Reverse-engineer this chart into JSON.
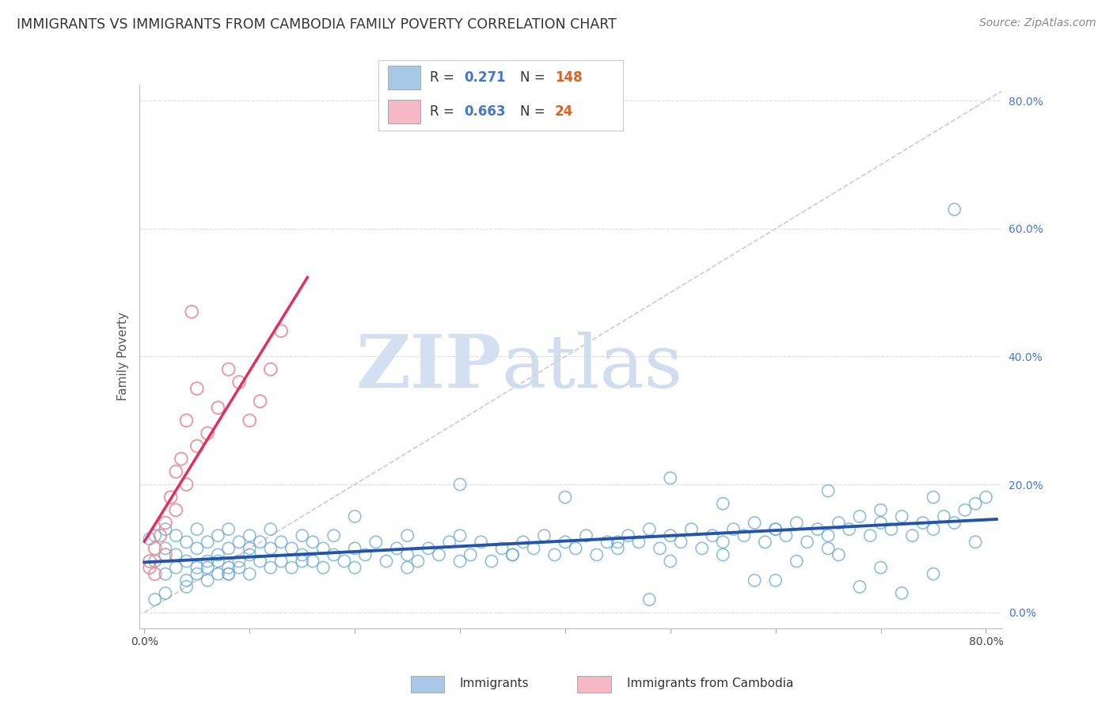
{
  "title": "IMMIGRANTS VS IMMIGRANTS FROM CAMBODIA FAMILY POVERTY CORRELATION CHART",
  "source": "Source: ZipAtlas.com",
  "ylabel": "Family Poverty",
  "legend_label1": "Immigrants",
  "legend_label2": "Immigrants from Cambodia",
  "R1": 0.271,
  "N1": 148,
  "R2": 0.663,
  "N2": 24,
  "xlim": [
    -0.005,
    0.815
  ],
  "ylim": [
    -0.025,
    0.825
  ],
  "yticks": [
    0.0,
    0.2,
    0.4,
    0.6,
    0.8
  ],
  "xtick_labels_show": [
    0.0,
    0.8
  ],
  "color_blue": "#A8C8E8",
  "color_blue_edge": "#6AAAD4",
  "color_blue_line": "#2255AA",
  "color_pink": "#F5B8C4",
  "color_pink_edge": "#E88898",
  "color_pink_line": "#E03060",
  "color_diag": "#E0B0B8",
  "color_grid": "#DDDDDD",
  "watermark_zip": "ZIP",
  "watermark_atlas": "atlas",
  "blue_x": [
    0.005,
    0.01,
    0.01,
    0.02,
    0.02,
    0.02,
    0.03,
    0.03,
    0.03,
    0.04,
    0.04,
    0.04,
    0.05,
    0.05,
    0.05,
    0.05,
    0.06,
    0.06,
    0.06,
    0.07,
    0.07,
    0.07,
    0.07,
    0.08,
    0.08,
    0.08,
    0.08,
    0.09,
    0.09,
    0.09,
    0.1,
    0.1,
    0.1,
    0.1,
    0.11,
    0.11,
    0.12,
    0.12,
    0.12,
    0.13,
    0.13,
    0.14,
    0.14,
    0.15,
    0.15,
    0.16,
    0.16,
    0.17,
    0.17,
    0.18,
    0.18,
    0.19,
    0.2,
    0.2,
    0.21,
    0.22,
    0.23,
    0.24,
    0.25,
    0.25,
    0.26,
    0.27,
    0.28,
    0.29,
    0.3,
    0.3,
    0.31,
    0.32,
    0.33,
    0.34,
    0.35,
    0.36,
    0.37,
    0.38,
    0.39,
    0.4,
    0.41,
    0.42,
    0.43,
    0.44,
    0.45,
    0.46,
    0.47,
    0.48,
    0.49,
    0.5,
    0.51,
    0.52,
    0.53,
    0.54,
    0.55,
    0.56,
    0.57,
    0.58,
    0.59,
    0.6,
    0.61,
    0.62,
    0.63,
    0.64,
    0.65,
    0.66,
    0.67,
    0.68,
    0.69,
    0.7,
    0.71,
    0.72,
    0.73,
    0.74,
    0.75,
    0.76,
    0.77,
    0.78,
    0.79,
    0.8,
    0.3,
    0.4,
    0.5,
    0.2,
    0.55,
    0.65,
    0.7,
    0.75,
    0.6,
    0.45,
    0.35,
    0.25,
    0.15,
    0.08,
    0.06,
    0.04,
    0.02,
    0.01,
    0.5,
    0.55,
    0.6,
    0.65,
    0.7,
    0.75,
    0.68,
    0.72,
    0.58,
    0.48,
    0.77,
    0.79,
    0.62,
    0.66
  ],
  "blue_y": [
    0.115,
    0.08,
    0.12,
    0.06,
    0.1,
    0.13,
    0.07,
    0.09,
    0.12,
    0.05,
    0.08,
    0.11,
    0.07,
    0.1,
    0.13,
    0.06,
    0.08,
    0.11,
    0.07,
    0.06,
    0.09,
    0.12,
    0.08,
    0.07,
    0.1,
    0.13,
    0.06,
    0.08,
    0.11,
    0.07,
    0.09,
    0.12,
    0.06,
    0.1,
    0.08,
    0.11,
    0.07,
    0.1,
    0.13,
    0.08,
    0.11,
    0.07,
    0.1,
    0.09,
    0.12,
    0.08,
    0.11,
    0.07,
    0.1,
    0.09,
    0.12,
    0.08,
    0.1,
    0.07,
    0.09,
    0.11,
    0.08,
    0.1,
    0.09,
    0.12,
    0.08,
    0.1,
    0.09,
    0.11,
    0.08,
    0.12,
    0.09,
    0.11,
    0.08,
    0.1,
    0.09,
    0.11,
    0.1,
    0.12,
    0.09,
    0.11,
    0.1,
    0.12,
    0.09,
    0.11,
    0.1,
    0.12,
    0.11,
    0.13,
    0.1,
    0.12,
    0.11,
    0.13,
    0.1,
    0.12,
    0.11,
    0.13,
    0.12,
    0.14,
    0.11,
    0.13,
    0.12,
    0.14,
    0.11,
    0.13,
    0.12,
    0.14,
    0.13,
    0.15,
    0.12,
    0.14,
    0.13,
    0.15,
    0.12,
    0.14,
    0.13,
    0.15,
    0.14,
    0.16,
    0.17,
    0.18,
    0.2,
    0.18,
    0.21,
    0.15,
    0.17,
    0.19,
    0.16,
    0.18,
    0.13,
    0.11,
    0.09,
    0.07,
    0.08,
    0.06,
    0.05,
    0.04,
    0.03,
    0.02,
    0.08,
    0.09,
    0.05,
    0.1,
    0.07,
    0.06,
    0.04,
    0.03,
    0.05,
    0.02,
    0.63,
    0.11,
    0.08,
    0.09
  ],
  "pink_x": [
    0.005,
    0.01,
    0.01,
    0.02,
    0.02,
    0.03,
    0.03,
    0.04,
    0.04,
    0.05,
    0.05,
    0.06,
    0.07,
    0.08,
    0.09,
    0.1,
    0.11,
    0.12,
    0.13,
    0.005,
    0.015,
    0.025,
    0.035,
    0.045
  ],
  "pink_y": [
    0.07,
    0.06,
    0.1,
    0.09,
    0.14,
    0.16,
    0.22,
    0.2,
    0.3,
    0.26,
    0.35,
    0.28,
    0.32,
    0.38,
    0.36,
    0.3,
    0.33,
    0.38,
    0.44,
    0.08,
    0.12,
    0.18,
    0.24,
    0.47
  ]
}
